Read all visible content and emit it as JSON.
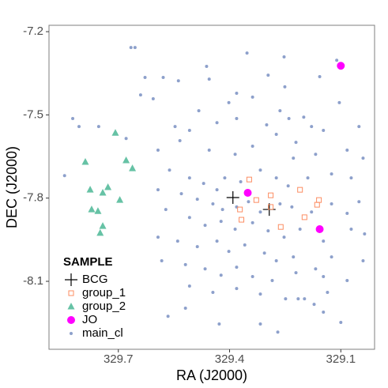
{
  "chart_data": {
    "type": "scatter",
    "x_label": "RA (J2000)",
    "y_label": "DEC (J2000)",
    "xlim": [
      329.887,
      329.009
    ],
    "ylim": [
      -8.345,
      -7.177
    ],
    "xticks": [
      329.7,
      329.4,
      329.1
    ],
    "yticks": [
      -7.2,
      -7.5,
      -7.8,
      -8.1
    ],
    "legend_title": "SAMPLE",
    "legend_position": "bottom-left",
    "series": [
      {
        "name": "BCG",
        "color": "#000000",
        "marker": "plus",
        "x": [
          329.391,
          329.293
        ],
        "y": [
          -7.798,
          -7.841
        ]
      },
      {
        "name": "group_1",
        "color": "#FC8D62",
        "marker": "square-open",
        "x": [
          329.347,
          329.289,
          329.21,
          329.159,
          329.164,
          329.198,
          329.262,
          329.289,
          329.368,
          329.328,
          329.372
        ],
        "y": [
          -7.733,
          -7.79,
          -7.77,
          -7.807,
          -7.824,
          -7.869,
          -7.904,
          -7.832,
          -7.878,
          -7.807,
          -7.841
        ]
      },
      {
        "name": "group_2",
        "color": "#66C2A5",
        "marker": "triangle",
        "x": [
          329.708,
          329.789,
          329.662,
          329.679,
          329.776,
          329.728,
          329.742,
          329.696,
          329.772,
          329.755,
          329.742,
          329.749
        ],
        "y": [
          -7.565,
          -7.67,
          -7.693,
          -7.664,
          -7.77,
          -7.761,
          -7.781,
          -7.807,
          -7.841,
          -7.847,
          -7.901,
          -7.926
        ]
      },
      {
        "name": "JO",
        "color": "#FF00FF",
        "marker": "circle-large",
        "x": [
          329.1,
          329.351,
          329.157
        ],
        "y": [
          -7.323,
          -7.781,
          -7.912
        ]
      },
      {
        "name": "main_cl",
        "color": "#8DA0CB",
        "marker": "circle",
        "x": [
          329.666,
          329.655,
          329.353,
          329.253,
          329.111,
          329.462,
          329.628,
          329.579,
          329.538,
          329.455,
          329.296,
          329.157,
          329.251,
          329.64,
          329.606,
          329.381,
          329.338,
          329.402,
          329.483,
          329.264,
          329.104,
          329.2,
          329.179,
          329.147,
          329.823,
          329.806,
          329.753,
          329.679,
          329.547,
          329.508,
          329.434,
          329.381,
          329.3,
          329.24,
          329.051,
          329.593,
          329.534,
          329.455,
          329.385,
          329.338,
          329.274,
          329.221,
          329.228,
          329.168,
          329.083,
          329.04,
          329.845,
          329.562,
          329.508,
          329.47,
          329.434,
          329.413,
          329.37,
          329.317,
          329.274,
          329.242,
          329.189,
          329.125,
          329.072,
          329.593,
          329.53,
          329.487,
          329.445,
          329.419,
          329.381,
          329.349,
          329.317,
          329.264,
          329.232,
          329.179,
          329.125,
          329.083,
          329.051,
          329.572,
          329.508,
          329.466,
          329.423,
          329.385,
          329.338,
          329.296,
          329.253,
          329.21,
          329.147,
          329.072,
          329.036,
          329.593,
          329.54,
          329.487,
          329.434,
          329.402,
          329.359,
          329.306,
          329.274,
          329.228,
          329.168,
          329.125,
          329.04,
          329.583,
          329.519,
          329.466,
          329.423,
          329.381,
          329.338,
          329.285,
          329.221,
          329.147,
          329.083,
          329.508,
          329.445,
          329.381,
          329.317,
          329.249,
          329.215,
          329.198,
          329.172,
          329.136,
          329.566,
          329.317,
          329.27,
          329.147,
          329.1,
          329.428,
          329.519
        ],
        "y": [
          -7.257,
          -7.257,
          -7.277,
          -7.291,
          -7.303,
          -7.325,
          -7.365,
          -7.365,
          -7.377,
          -7.371,
          -7.357,
          -7.362,
          -7.399,
          -7.428,
          -7.442,
          -7.422,
          -7.436,
          -7.456,
          -7.485,
          -7.485,
          -7.456,
          -7.508,
          -7.542,
          -7.556,
          -7.513,
          -7.542,
          -7.542,
          -7.585,
          -7.542,
          -7.556,
          -7.528,
          -7.513,
          -7.536,
          -7.513,
          -7.542,
          -7.627,
          -7.593,
          -7.627,
          -7.642,
          -7.613,
          -7.57,
          -7.599,
          -7.656,
          -7.642,
          -7.627,
          -7.656,
          -7.719,
          -7.699,
          -7.727,
          -7.747,
          -7.77,
          -7.727,
          -7.741,
          -7.699,
          -7.727,
          -7.756,
          -7.727,
          -7.713,
          -7.727,
          -7.77,
          -7.784,
          -7.804,
          -7.821,
          -7.841,
          -7.832,
          -7.813,
          -7.85,
          -7.821,
          -7.832,
          -7.85,
          -7.821,
          -7.855,
          -7.813,
          -7.841,
          -7.87,
          -7.898,
          -7.884,
          -7.912,
          -7.889,
          -7.918,
          -7.941,
          -7.912,
          -7.955,
          -7.912,
          -7.929,
          -7.941,
          -7.955,
          -7.975,
          -7.955,
          -7.992,
          -7.969,
          -7.998,
          -8.026,
          -8.012,
          -8.055,
          -8.012,
          -8.026,
          -8.026,
          -8.04,
          -8.055,
          -8.078,
          -8.049,
          -8.083,
          -8.097,
          -8.069,
          -8.083,
          -8.097,
          -8.117,
          -8.14,
          -8.126,
          -8.146,
          -8.163,
          -8.163,
          -8.163,
          -8.183,
          -8.14,
          -8.226,
          -8.254,
          -8.283,
          -8.211,
          -8.248,
          -8.254,
          -8.197
        ]
      }
    ]
  }
}
